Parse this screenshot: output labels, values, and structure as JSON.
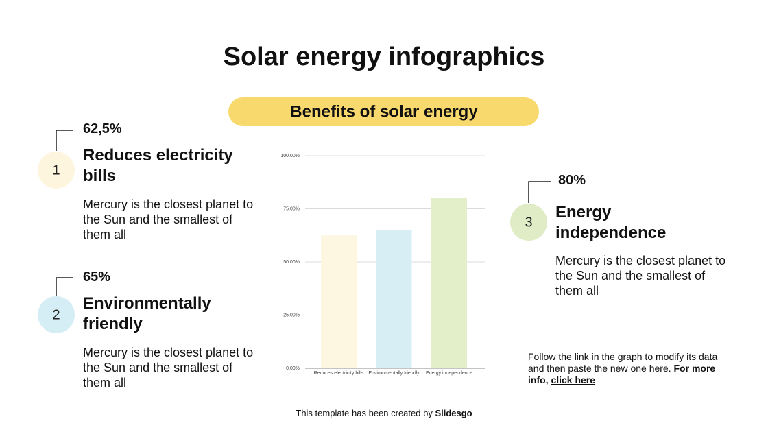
{
  "title": "Solar energy infographics",
  "banner": "Benefits of solar energy",
  "items": [
    {
      "number": "1",
      "percent": "62,5%",
      "heading": "Reduces electricity bills",
      "text": "Mercury is the closest planet to the Sun and the smallest of them all",
      "color": "#fdf5de"
    },
    {
      "number": "2",
      "percent": "65%",
      "heading": "Environmentally friendly",
      "text": "Mercury is the closest planet to the Sun and the smallest of them all",
      "color": "#d5eef5"
    },
    {
      "number": "3",
      "percent": "80%",
      "heading": "Energy independence",
      "text": "Mercury is the closest planet to the Sun and the smallest of them all",
      "color": "#dfecc6"
    }
  ],
  "note": {
    "text": "Follow the link in the graph to modify its data and then paste the new one here. ",
    "bold": "For more info, ",
    "link": "click here"
  },
  "footer": {
    "text": "This template has been created by ",
    "brand": "Slidesgo"
  },
  "chart_data": {
    "type": "bar",
    "categories": [
      "Reduces electricity bills",
      "Environmentally friendly",
      "Energy independence"
    ],
    "values": [
      62.5,
      65,
      80
    ],
    "colors": [
      "#fdf6e1",
      "#d6eef4",
      "#e2efc8"
    ],
    "ylim": [
      0,
      100
    ],
    "yticks": [
      {
        "value": 0,
        "label": "0.00%"
      },
      {
        "value": 25,
        "label": "25.00%"
      },
      {
        "value": 50,
        "label": "50.00%"
      },
      {
        "value": 75,
        "label": "75.00%"
      },
      {
        "value": 100,
        "label": "100.00%"
      }
    ],
    "grid": true
  }
}
